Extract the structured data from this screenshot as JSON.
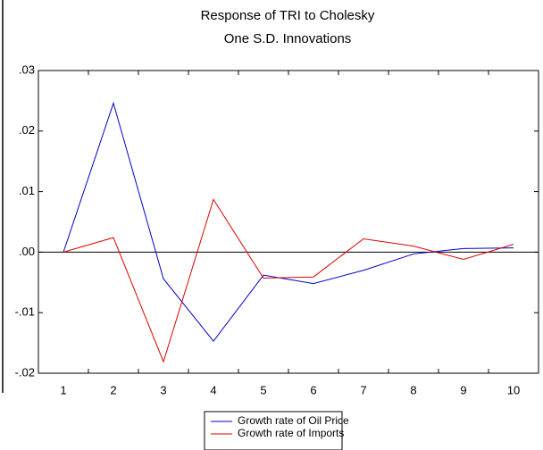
{
  "chart_data": {
    "type": "line",
    "title": "Response of TRI to Cholesky",
    "subtitle": "One S.D. Innovations",
    "categories": [
      "1",
      "2",
      "3",
      "4",
      "5",
      "6",
      "7",
      "8",
      "9",
      "10"
    ],
    "series": [
      {
        "name": "Growth rate of Oil Price",
        "color": "#0000cc",
        "values": [
          0,
          0.0246,
          -0.0044,
          -0.0147,
          -0.0038,
          -0.0052,
          -0.003,
          -0.0003,
          0.0006,
          0.0007
        ]
      },
      {
        "name": "Growth rate of Imports",
        "color": "#dd0000",
        "values": [
          0,
          0.0024,
          -0.0181,
          0.0087,
          -0.0043,
          -0.0041,
          0.0022,
          0.001,
          -0.0012,
          0.0013
        ]
      }
    ],
    "ylim": [
      -0.02,
      0.03
    ],
    "yticks": [
      {
        "value": -0.02,
        "label": "-.02"
      },
      {
        "value": -0.01,
        "label": "-.01"
      },
      {
        "value": 0,
        "label": ".00"
      },
      {
        "value": 0.01,
        "label": ".01"
      },
      {
        "value": 0.02,
        "label": ".02"
      },
      {
        "value": 0.03,
        "label": ".03"
      }
    ],
    "legend": "bottom"
  }
}
